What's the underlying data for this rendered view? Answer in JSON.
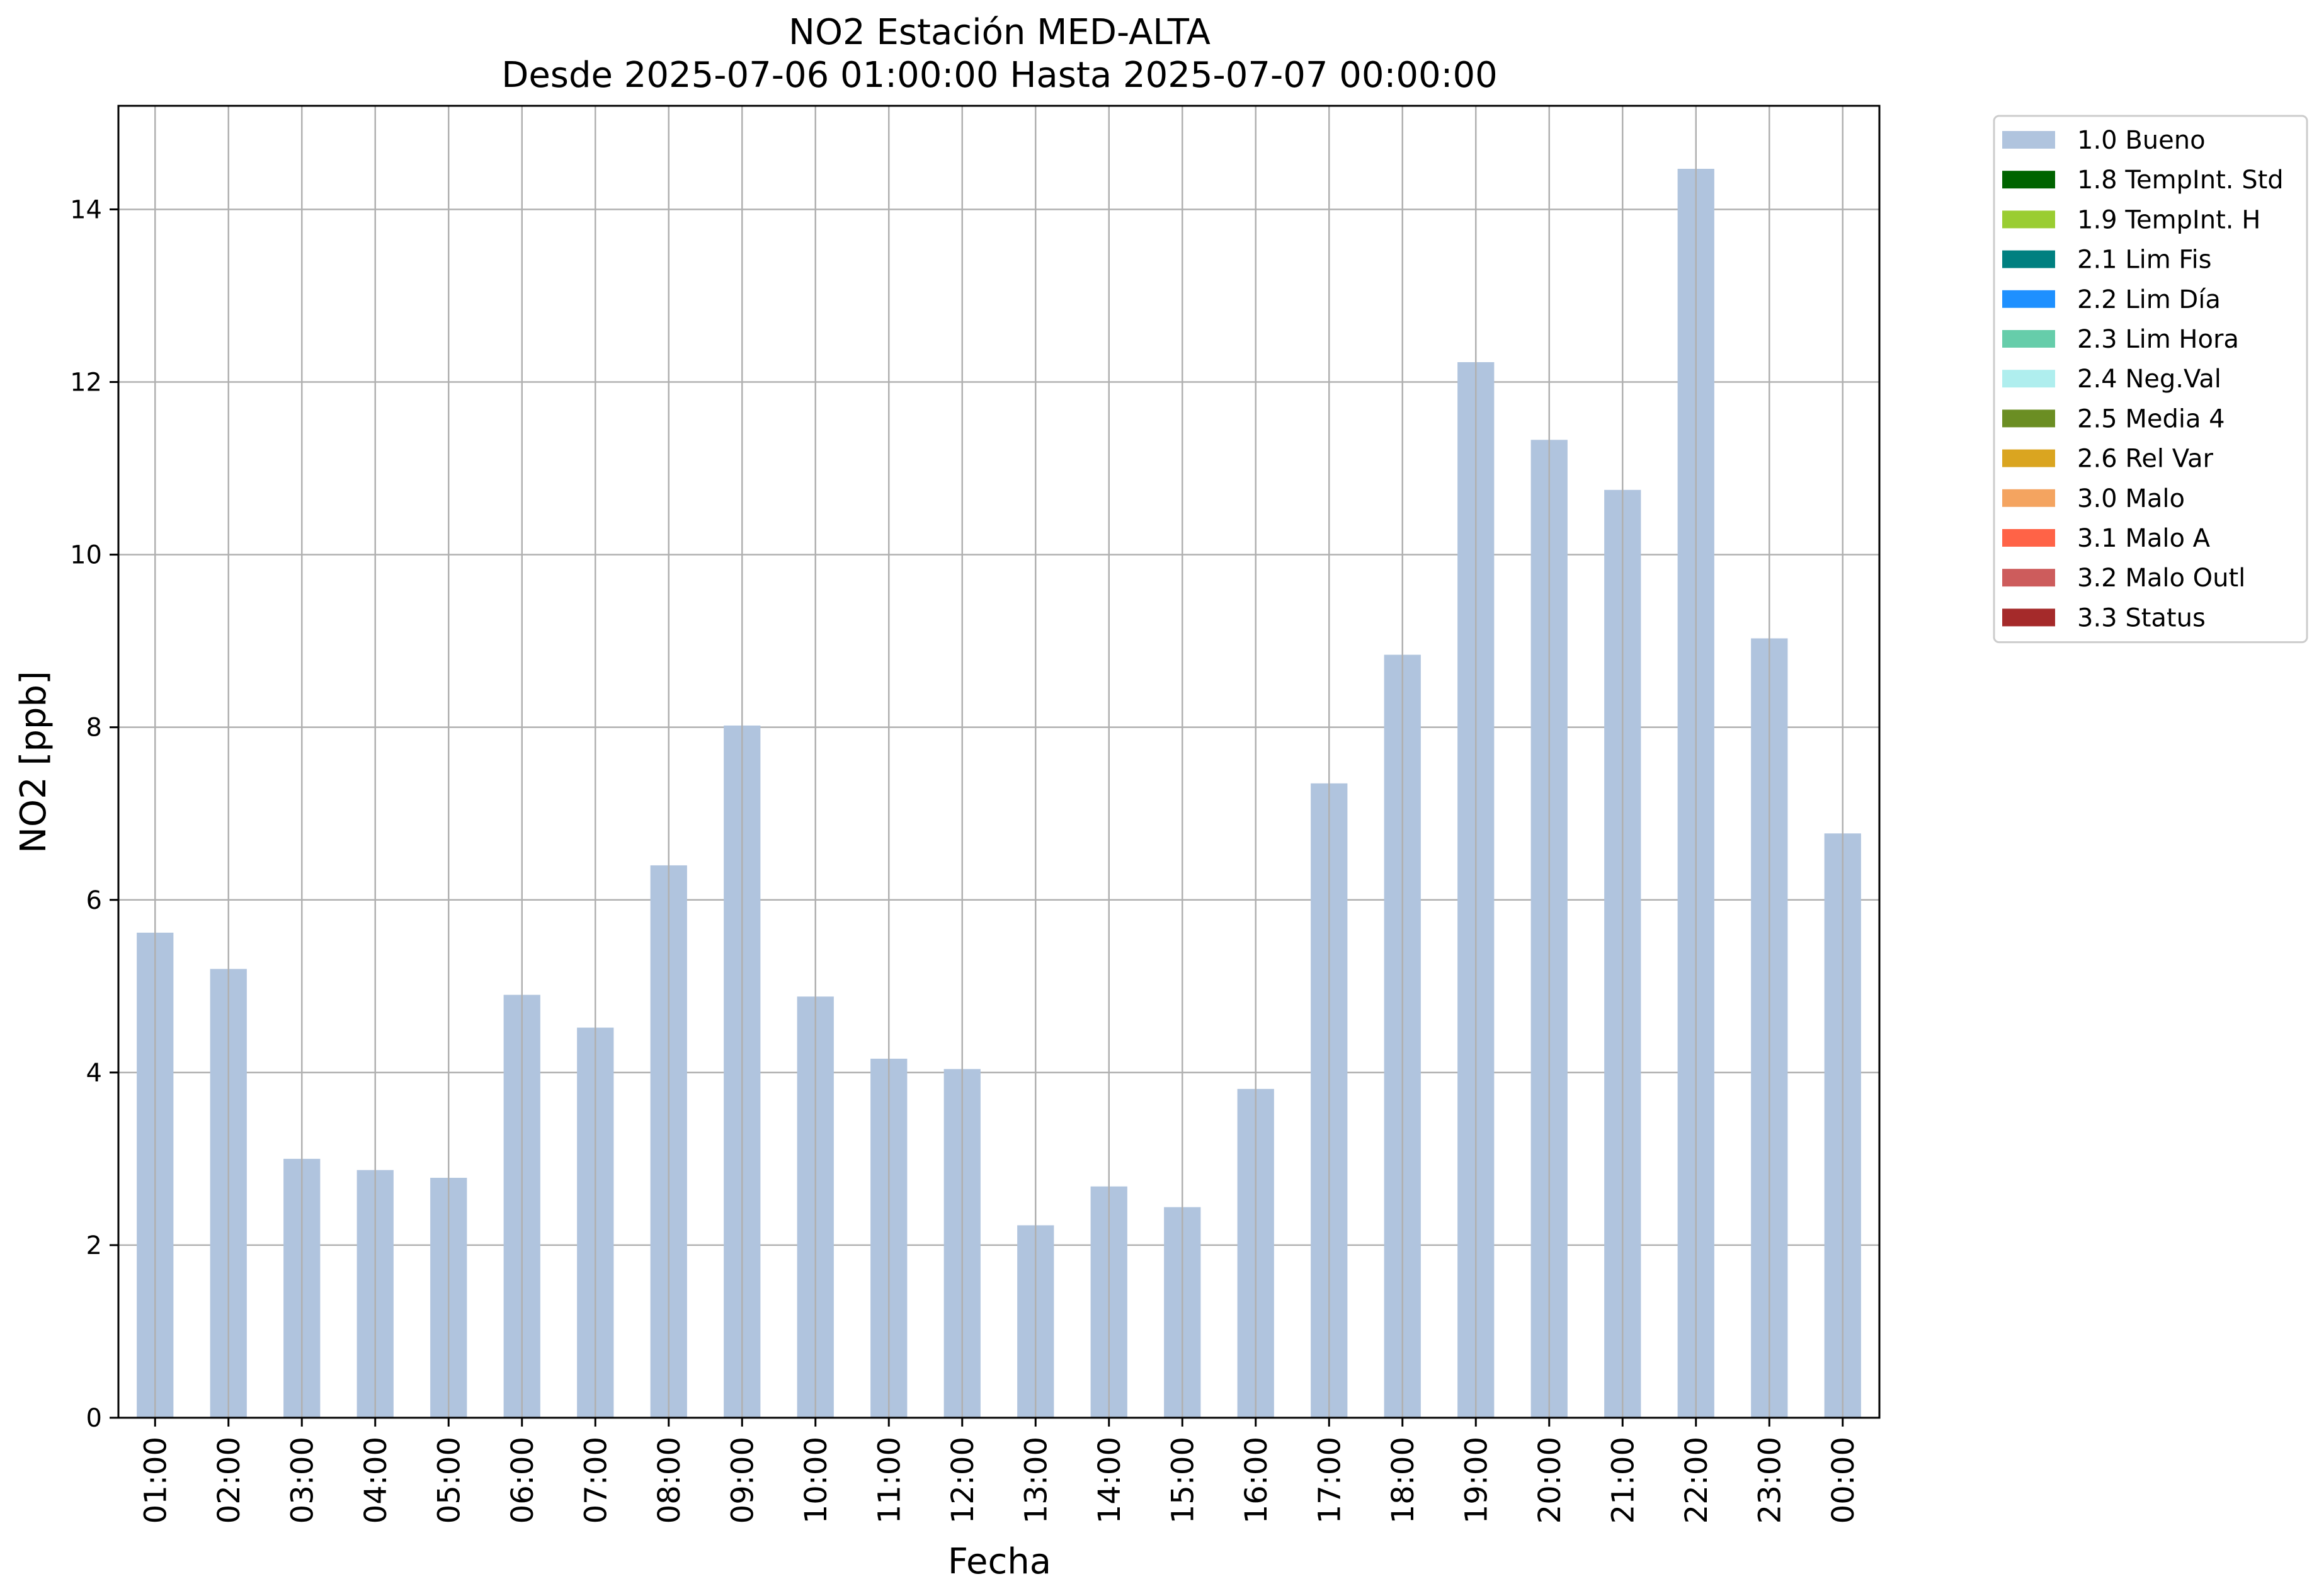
{
  "chart_data": {
    "type": "bar",
    "title": "NO2 Estación MED-ALTA",
    "subtitle": "Desde 2025-07-06 01:00:00 Hasta 2025-07-07 00:00:00",
    "xlabel": "Fecha",
    "ylabel": "NO2 [ppb]",
    "ylim": [
      0,
      15.2
    ],
    "yticks": [
      0,
      2,
      4,
      6,
      8,
      10,
      12,
      14
    ],
    "grid": true,
    "legend_position": "outside top-right",
    "categories": [
      "01:00",
      "02:00",
      "03:00",
      "04:00",
      "05:00",
      "06:00",
      "07:00",
      "08:00",
      "09:00",
      "10:00",
      "11:00",
      "12:00",
      "13:00",
      "14:00",
      "15:00",
      "16:00",
      "17:00",
      "18:00",
      "19:00",
      "20:00",
      "21:00",
      "22:00",
      "23:00",
      "00:00"
    ],
    "series": [
      {
        "name": "1.0 Bueno",
        "color": "#b0c4de",
        "values": [
          5.62,
          5.2,
          3.0,
          2.87,
          2.78,
          4.9,
          4.52,
          6.4,
          8.02,
          4.88,
          4.16,
          4.04,
          2.23,
          2.68,
          2.44,
          3.81,
          7.35,
          8.84,
          12.23,
          11.33,
          10.75,
          14.47,
          9.03,
          6.77
        ]
      }
    ],
    "legend": [
      {
        "label": "1.0 Bueno",
        "color": "#b0c4de"
      },
      {
        "label": "1.8 TempInt. Std",
        "color": "#006400"
      },
      {
        "label": "1.9 TempInt. H",
        "color": "#9acd32"
      },
      {
        "label": "2.1 Lim Fis",
        "color": "#008080"
      },
      {
        "label": "2.2 Lim Día",
        "color": "#1e90ff"
      },
      {
        "label": "2.3 Lim Hora",
        "color": "#66cdaa"
      },
      {
        "label": "2.4 Neg.Val",
        "color": "#afeeee"
      },
      {
        "label": "2.5 Media 4",
        "color": "#6b8e23"
      },
      {
        "label": "2.6 Rel Var",
        "color": "#daa520"
      },
      {
        "label": "3.0 Malo",
        "color": "#f4a460"
      },
      {
        "label": "3.1 Malo A",
        "color": "#ff6347"
      },
      {
        "label": "3.2 Malo Outl",
        "color": "#cd5c5c"
      },
      {
        "label": "3.3 Status",
        "color": "#a52a2a"
      }
    ]
  }
}
